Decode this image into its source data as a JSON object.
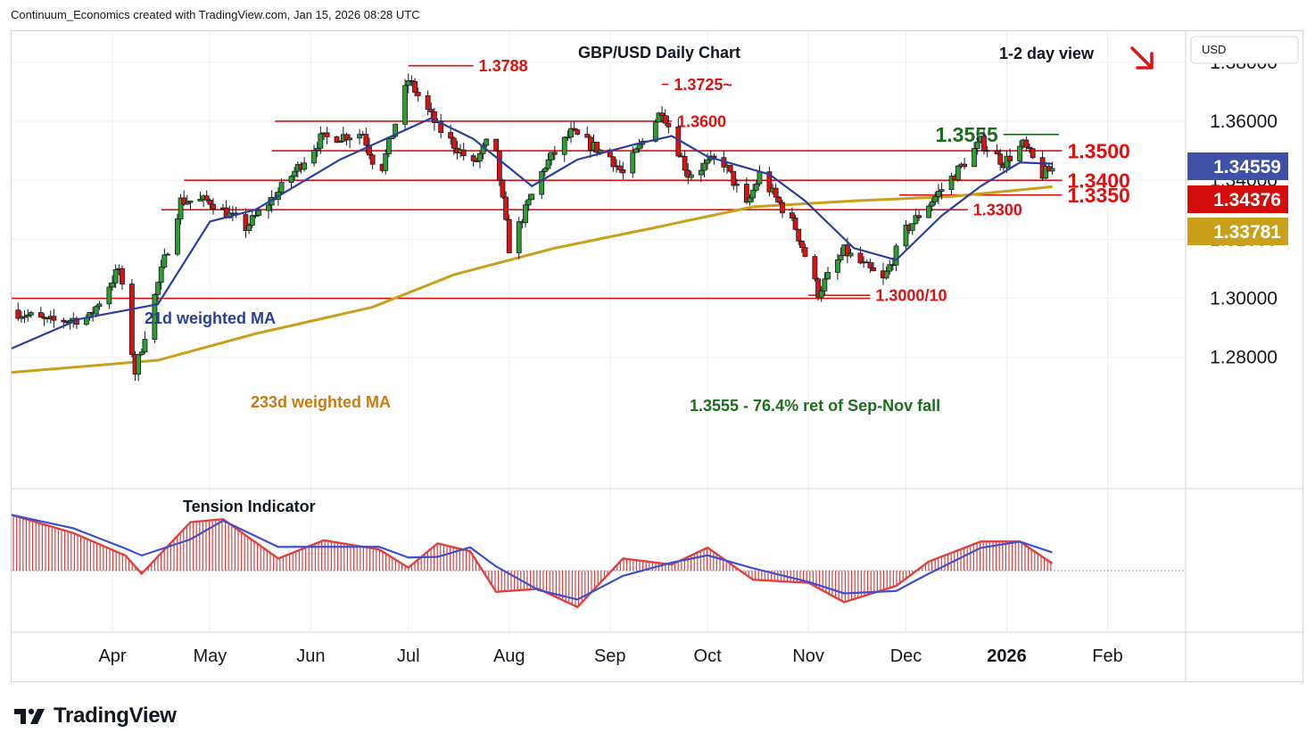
{
  "header": {
    "attribution": "Continuum_Economics created with TradingView.com, Jan 15, 2026 08:28 UTC"
  },
  "footer": {
    "brand": "TradingView",
    "brand_icon": "tradingview-logo-icon"
  },
  "chart_data": {
    "type": "candlestick",
    "title": "GBP/USD Daily Chart",
    "view_label": "1-2 day view",
    "view_direction": "down",
    "view_arrow_icon": "arrow-down-right-icon",
    "currency_label": "USD",
    "x_axis_ticks": [
      {
        "label": "Apr",
        "date": "2025-04-01"
      },
      {
        "label": "May",
        "date": "2025-05-01"
      },
      {
        "label": "Jun",
        "date": "2025-06-01"
      },
      {
        "label": "Jul",
        "date": "2025-07-01"
      },
      {
        "label": "Aug",
        "date": "2025-08-01"
      },
      {
        "label": "Sep",
        "date": "2025-09-01"
      },
      {
        "label": "Oct",
        "date": "2025-10-01"
      },
      {
        "label": "Nov",
        "date": "2025-11-01"
      },
      {
        "label": "Dec",
        "date": "2025-12-01"
      },
      {
        "label": "2026",
        "date": "2026-01-01",
        "bold": true
      },
      {
        "label": "Feb",
        "date": "2026-02-01"
      }
    ],
    "x_range": [
      "2025-03-01",
      "2026-02-25"
    ],
    "y_axis_ticks": [
      "1.28000",
      "1.30000",
      "1.32000",
      "1.34000",
      "1.36000",
      "1.38000"
    ],
    "ylim": [
      1.2355,
      1.3905
    ],
    "price_badges": [
      {
        "value": "1.34559",
        "color": "#3f51a6"
      },
      {
        "value": "1.34376",
        "color": "#d50c0c"
      },
      {
        "value": "1.33781",
        "color": "#c9a01a"
      }
    ],
    "levels": [
      {
        "value": 1.3788,
        "label": "1.3788",
        "from": "2025-07-01",
        "to": "2025-07-21",
        "label_size": "small"
      },
      {
        "value": 1.3725,
        "label": "1.3725~",
        "from": "2025-09-17",
        "to": "2025-09-19",
        "label_size": "small"
      },
      {
        "value": 1.36,
        "label": "1.3600",
        "from": "2025-05-21",
        "to": "2025-09-20",
        "label_size": "small"
      },
      {
        "value": 1.3555,
        "label": "1.3555",
        "from": "2025-12-31",
        "to": "2026-01-17",
        "color": "#1b6e1b",
        "label_size": "big",
        "label_side": "left"
      },
      {
        "value": 1.35,
        "label": "1.3500",
        "from": "2025-05-20",
        "to": "2026-01-18",
        "label_size": "big"
      },
      {
        "value": 1.34,
        "label": "1.3400",
        "from": "2025-04-23",
        "to": "2026-01-18",
        "label_size": "big"
      },
      {
        "value": 1.335,
        "label": "1.3350",
        "from": "2025-11-29",
        "to": "2026-01-18",
        "label_size": "big"
      },
      {
        "value": 1.33,
        "label": "1.3300",
        "from": "2025-04-16",
        "to": "2025-12-20",
        "label_size": "small"
      },
      {
        "value": 1.3,
        "label": "",
        "from": "2025-03-01",
        "to": "2025-11-20"
      },
      {
        "value": 1.301,
        "label": "1.3000/10",
        "from": "2025-11-01",
        "to": "2025-11-20",
        "label_size": "small"
      }
    ],
    "annotations": [
      {
        "text": "21d weighted MA",
        "color": "#2a3f9d"
      },
      {
        "text": "233d weighted MA",
        "color": "#c97a10"
      },
      {
        "text": "1.3555 - 76.4% ret of Sep-Nov fall",
        "color": "#1b6e1b"
      }
    ],
    "price_path": [
      {
        "date": "2025-03-01",
        "close": 1.296
      },
      {
        "date": "2025-03-12",
        "close": 1.292
      },
      {
        "date": "2025-03-25",
        "close": 1.2935
      },
      {
        "date": "2025-04-03",
        "close": 1.31
      },
      {
        "date": "2025-04-08",
        "close": 1.275
      },
      {
        "date": "2025-04-15",
        "close": 1.305
      },
      {
        "date": "2025-04-22",
        "close": 1.333
      },
      {
        "date": "2025-05-01",
        "close": 1.333
      },
      {
        "date": "2025-05-12",
        "close": 1.324
      },
      {
        "date": "2025-05-22",
        "close": 1.336
      },
      {
        "date": "2025-06-04",
        "close": 1.354
      },
      {
        "date": "2025-06-17",
        "close": 1.356
      },
      {
        "date": "2025-06-22",
        "close": 1.341
      },
      {
        "date": "2025-07-01",
        "close": 1.374
      },
      {
        "date": "2025-07-10",
        "close": 1.358
      },
      {
        "date": "2025-07-21",
        "close": 1.345
      },
      {
        "date": "2025-07-27",
        "close": 1.356
      },
      {
        "date": "2025-08-01",
        "close": 1.317
      },
      {
        "date": "2025-08-12",
        "close": 1.345
      },
      {
        "date": "2025-08-20",
        "close": 1.356
      },
      {
        "date": "2025-09-01",
        "close": 1.348
      },
      {
        "date": "2025-09-05",
        "close": 1.342
      },
      {
        "date": "2025-09-17",
        "close": 1.364
      },
      {
        "date": "2025-09-25",
        "close": 1.342
      },
      {
        "date": "2025-10-05",
        "close": 1.348
      },
      {
        "date": "2025-10-13",
        "close": 1.331
      },
      {
        "date": "2025-10-17",
        "close": 1.342
      },
      {
        "date": "2025-10-28",
        "close": 1.324
      },
      {
        "date": "2025-11-04",
        "close": 1.302
      },
      {
        "date": "2025-11-12",
        "close": 1.316
      },
      {
        "date": "2025-11-24",
        "close": 1.306
      },
      {
        "date": "2025-12-01",
        "close": 1.323
      },
      {
        "date": "2025-12-08",
        "close": 1.332
      },
      {
        "date": "2025-12-16",
        "close": 1.342
      },
      {
        "date": "2025-12-24",
        "close": 1.353
      },
      {
        "date": "2025-12-31",
        "close": 1.346
      },
      {
        "date": "2026-01-06",
        "close": 1.352
      },
      {
        "date": "2026-01-12",
        "close": 1.342
      },
      {
        "date": "2026-01-15",
        "close": 1.3438
      }
    ],
    "ma21_path": [
      {
        "date": "2025-03-01",
        "value": 1.283
      },
      {
        "date": "2025-03-22",
        "value": 1.293
      },
      {
        "date": "2025-04-15",
        "value": 1.298
      },
      {
        "date": "2025-05-01",
        "value": 1.326
      },
      {
        "date": "2025-05-15",
        "value": 1.33
      },
      {
        "date": "2025-06-10",
        "value": 1.347
      },
      {
        "date": "2025-07-08",
        "value": 1.361
      },
      {
        "date": "2025-07-21",
        "value": 1.354
      },
      {
        "date": "2025-08-08",
        "value": 1.338
      },
      {
        "date": "2025-08-22",
        "value": 1.347
      },
      {
        "date": "2025-09-08",
        "value": 1.352
      },
      {
        "date": "2025-09-20",
        "value": 1.355
      },
      {
        "date": "2025-10-01",
        "value": 1.348
      },
      {
        "date": "2025-10-20",
        "value": 1.342
      },
      {
        "date": "2025-10-31",
        "value": 1.333
      },
      {
        "date": "2025-11-15",
        "value": 1.317
      },
      {
        "date": "2025-11-28",
        "value": 1.313
      },
      {
        "date": "2025-12-12",
        "value": 1.328
      },
      {
        "date": "2025-12-24",
        "value": 1.338
      },
      {
        "date": "2026-01-05",
        "value": 1.346
      },
      {
        "date": "2026-01-15",
        "value": 1.3456
      }
    ],
    "ma233_path": [
      {
        "date": "2025-03-01",
        "value": 1.2749
      },
      {
        "date": "2025-04-15",
        "value": 1.279
      },
      {
        "date": "2025-05-15",
        "value": 1.288
      },
      {
        "date": "2025-06-20",
        "value": 1.297
      },
      {
        "date": "2025-07-15",
        "value": 1.308
      },
      {
        "date": "2025-08-15",
        "value": 1.317
      },
      {
        "date": "2025-09-15",
        "value": 1.324
      },
      {
        "date": "2025-10-15",
        "value": 1.331
      },
      {
        "date": "2025-11-15",
        "value": 1.333
      },
      {
        "date": "2025-12-15",
        "value": 1.3345
      },
      {
        "date": "2026-01-15",
        "value": 1.3378
      }
    ],
    "tension_indicator": {
      "title": "Tension Indicator",
      "bar_color": "#e04040",
      "signal_color": "#3b4fd0",
      "path": [
        {
          "date": "2025-03-01",
          "value": 0.92
        },
        {
          "date": "2025-03-20",
          "value": 0.62
        },
        {
          "date": "2025-04-05",
          "value": 0.25
        },
        {
          "date": "2025-04-10",
          "value": -0.05
        },
        {
          "date": "2025-04-25",
          "value": 0.8
        },
        {
          "date": "2025-05-05",
          "value": 0.85
        },
        {
          "date": "2025-05-22",
          "value": 0.2
        },
        {
          "date": "2025-06-05",
          "value": 0.5
        },
        {
          "date": "2025-06-22",
          "value": 0.35
        },
        {
          "date": "2025-07-01",
          "value": 0.05
        },
        {
          "date": "2025-07-10",
          "value": 0.45
        },
        {
          "date": "2025-07-20",
          "value": 0.32
        },
        {
          "date": "2025-07-28",
          "value": -0.35
        },
        {
          "date": "2025-08-10",
          "value": -0.3
        },
        {
          "date": "2025-08-22",
          "value": -0.6
        },
        {
          "date": "2025-09-05",
          "value": 0.2
        },
        {
          "date": "2025-09-20",
          "value": 0.1
        },
        {
          "date": "2025-10-01",
          "value": 0.38
        },
        {
          "date": "2025-10-15",
          "value": -0.15
        },
        {
          "date": "2025-11-01",
          "value": -0.2
        },
        {
          "date": "2025-11-12",
          "value": -0.52
        },
        {
          "date": "2025-11-28",
          "value": -0.25
        },
        {
          "date": "2025-12-08",
          "value": 0.15
        },
        {
          "date": "2025-12-24",
          "value": 0.48
        },
        {
          "date": "2026-01-05",
          "value": 0.48
        },
        {
          "date": "2026-01-15",
          "value": 0.12
        }
      ]
    }
  }
}
